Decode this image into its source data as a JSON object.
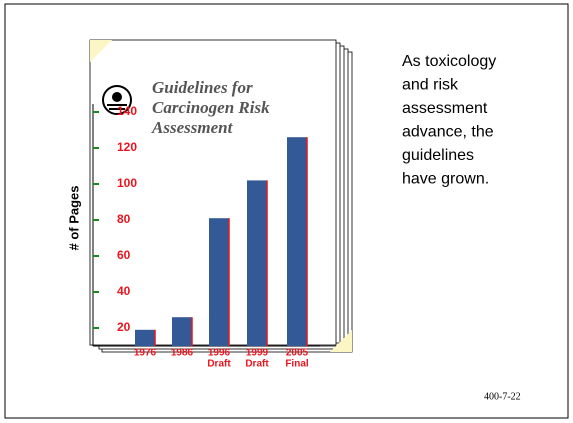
{
  "chart_data": {
    "type": "bar",
    "title": [
      "Guidelines for",
      "Carcinogen Risk",
      "Assessment"
    ],
    "y_label": "# of Pages",
    "categories": [
      [
        "1976"
      ],
      [
        "1986"
      ],
      [
        "1996",
        "Draft"
      ],
      [
        "1999",
        "Draft"
      ],
      [
        "2005",
        "Final"
      ]
    ],
    "values": [
      19,
      26,
      81,
      102,
      126
    ],
    "color": "#335a96",
    "ylim": [
      10,
      150
    ],
    "yticks": [
      20,
      40,
      60,
      80,
      100,
      120,
      140
    ]
  },
  "side_text": [
    "As toxicology",
    "and risk",
    "assessment",
    "advance, the",
    "guidelines",
    "have grown."
  ],
  "footer": "400-7-22"
}
